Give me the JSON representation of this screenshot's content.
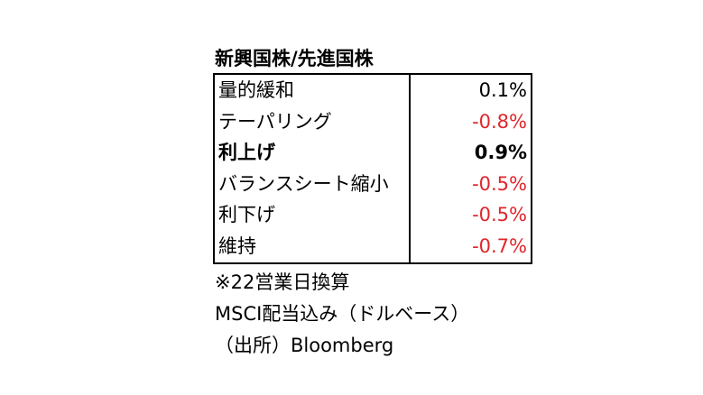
{
  "title": "新興国株/先進国株",
  "rows": [
    {
      "label": "量的緩和",
      "value": "0.1%",
      "color": "#000000",
      "bold": false
    },
    {
      "label": "テーパリング",
      "value": "-0.8%",
      "color": "#e0262b",
      "bold": false
    },
    {
      "label": "利上げ",
      "value": "0.9%",
      "color": "#000000",
      "bold": true
    },
    {
      "label": "バランスシート縮小",
      "value": "-0.5%",
      "color": "#e0262b",
      "bold": false
    },
    {
      "label": "利下げ",
      "value": "-0.5%",
      "color": "#e0262b",
      "bold": false
    },
    {
      "label": "維持",
      "value": "-0.7%",
      "color": "#e0262b",
      "bold": false
    }
  ],
  "notes": [
    "※22営業日換算",
    "MSCI配当込み（ドルベース）",
    "（出所）Bloomberg"
  ]
}
